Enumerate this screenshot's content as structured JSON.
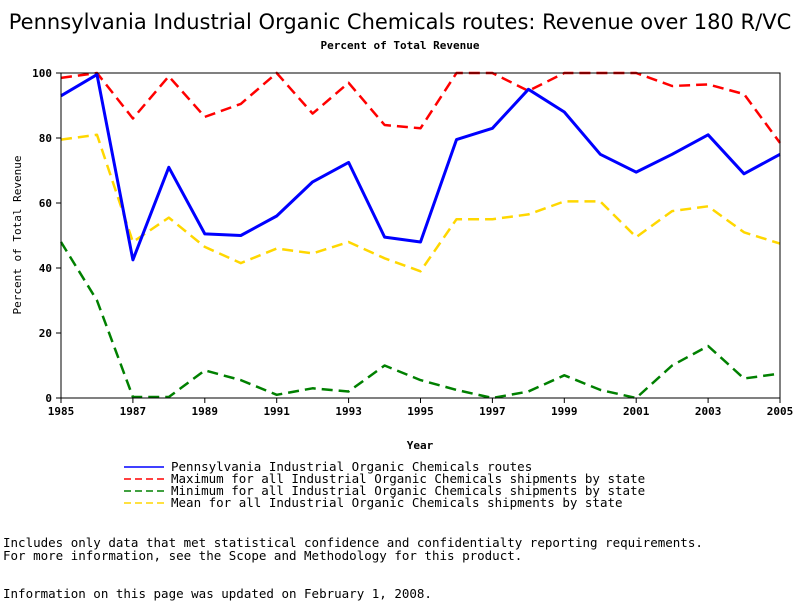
{
  "chart_data": {
    "type": "line",
    "title": "Pennsylvania Industrial Organic Chemicals routes: Revenue over 180 R/VC",
    "subtitle": "Percent of Total Revenue",
    "xlabel": "Year",
    "ylabel": "Percent of Total Revenue",
    "xlim": [
      1985,
      2005
    ],
    "ylim": [
      0,
      100
    ],
    "x_ticks": [
      1985,
      1987,
      1989,
      1991,
      1993,
      1995,
      1997,
      1999,
      2001,
      2003,
      2005
    ],
    "y_ticks": [
      0,
      20,
      40,
      60,
      80,
      100
    ],
    "grid": false,
    "legend_position": "bottom",
    "x": [
      1985,
      1986,
      1987,
      1988,
      1989,
      1990,
      1991,
      1992,
      1993,
      1994,
      1995,
      1996,
      1997,
      1998,
      1999,
      2000,
      2001,
      2002,
      2003,
      2004,
      2005
    ],
    "series": [
      {
        "name": "Pennsylvania Industrial Organic Chemicals routes",
        "color": "#0000ff",
        "style": "solid",
        "values": [
          93,
          99.5,
          42.5,
          71,
          50.5,
          50,
          56,
          66.5,
          72.5,
          49.5,
          48,
          79.5,
          83,
          95,
          88,
          75,
          69.5,
          75,
          81,
          69,
          75
        ]
      },
      {
        "name": "Maximum for all Industrial Organic Chemicals shipments by state",
        "color": "#ff0000",
        "style": "dashed",
        "values": [
          98.5,
          100,
          86,
          99,
          86.5,
          90.5,
          100,
          87.5,
          97,
          84,
          83,
          100,
          100,
          94.5,
          100,
          100,
          100,
          96,
          96.5,
          93.5,
          78.5
        ]
      },
      {
        "name": "Minimum for all Industrial Organic Chemicals shipments by state",
        "color": "#008000",
        "style": "dashed",
        "values": [
          48,
          30,
          0.3,
          0.3,
          8.5,
          5.5,
          1,
          3,
          2,
          10,
          5.5,
          2.5,
          0,
          2,
          7,
          2.5,
          0,
          10,
          16,
          6,
          7.5
        ]
      },
      {
        "name": "Mean for all Industrial Organic Chemicals shipments by state",
        "color": "#ffd700",
        "style": "dashed",
        "values": [
          79.5,
          81,
          48,
          55.5,
          46.5,
          41.5,
          46,
          44.5,
          48,
          43,
          39,
          55,
          55,
          56.5,
          60.5,
          60.5,
          49.5,
          57.5,
          59,
          51,
          47.5
        ]
      }
    ]
  },
  "notes": [
    "Includes only data that met statistical confidence and confidentialty reporting requirements.",
    "For more information, see the Scope and Methodology for this product.",
    "Information on this page was updated on February 1, 2008."
  ]
}
